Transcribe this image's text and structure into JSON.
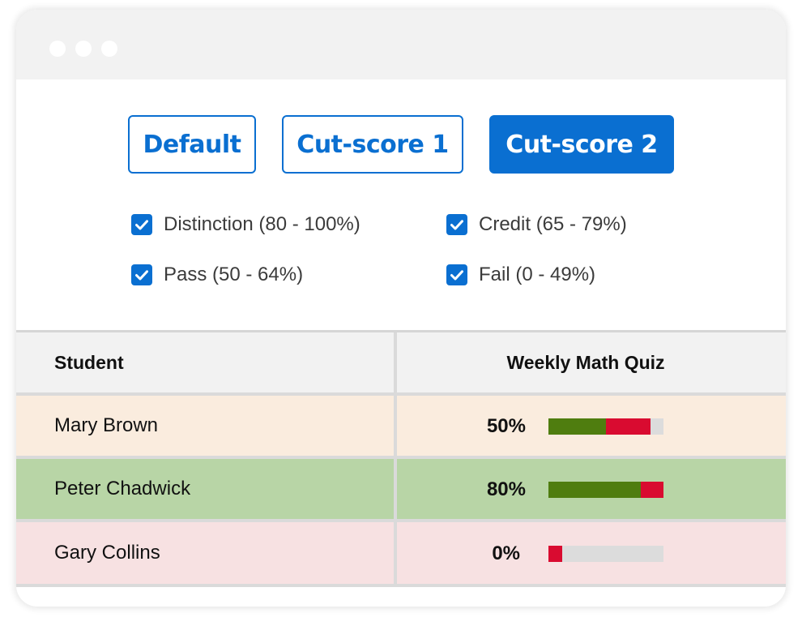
{
  "buttons": {
    "default": "Default",
    "cut1": "Cut-score 1",
    "cut2": "Cut-score 2",
    "active": "cut2"
  },
  "filters": [
    {
      "label": "Distinction (80 - 100%)",
      "checked": true
    },
    {
      "label": "Credit (65 - 79%)",
      "checked": true
    },
    {
      "label": "Pass (50 - 64%)",
      "checked": true
    },
    {
      "label": "Fail (0 - 49%)",
      "checked": true
    }
  ],
  "table": {
    "headers": {
      "student": "Student",
      "quiz": "Weekly Math Quiz"
    },
    "rows": [
      {
        "student": "Mary Brown",
        "score": "50%",
        "bar_correct_fraction": 0.5,
        "bar_incorrect_fraction": 0.39,
        "row_color": "#faecde"
      },
      {
        "student": "Peter Chadwick",
        "score": "80%",
        "bar_correct_fraction": 0.8,
        "bar_incorrect_fraction": 0.2,
        "row_color": "#b8d5a6"
      },
      {
        "student": "Gary Collins",
        "score": "0%",
        "bar_correct_fraction": 0.0,
        "bar_incorrect_fraction": 0.12,
        "row_color": "#f7e1e2"
      }
    ]
  },
  "colors": {
    "accent": "#0a6fd1",
    "bar_correct": "#4f7d0f",
    "bar_incorrect": "#d90b30",
    "bar_empty": "#dcdcdc"
  },
  "icons": {
    "checkbox": "checkbox-checked-icon",
    "window_dots": "window-control-dot-icon"
  }
}
